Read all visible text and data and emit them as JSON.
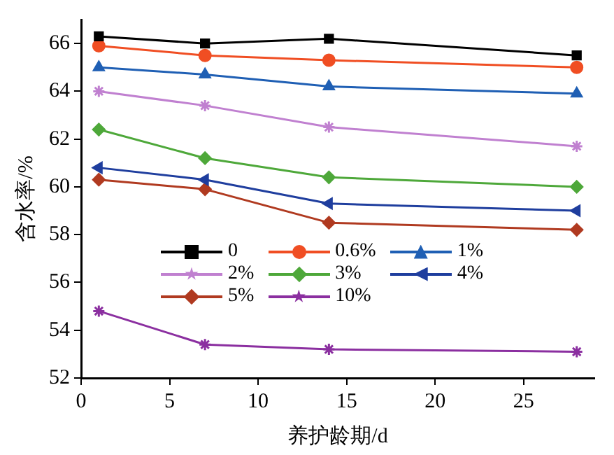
{
  "chart_data": {
    "type": "line",
    "xlabel": "养护龄期/d",
    "ylabel": "含水率/%",
    "x": [
      1,
      7,
      14,
      28
    ],
    "xlim": [
      0,
      29
    ],
    "xticks": [
      0,
      5,
      10,
      15,
      20,
      25
    ],
    "ylim": [
      52,
      67
    ],
    "yticks": [
      52,
      54,
      56,
      58,
      60,
      62,
      64,
      66
    ],
    "grid": false,
    "legend": "center",
    "line_style": "solid",
    "series": [
      {
        "name": "0",
        "color": "#000000",
        "marker": "square",
        "values": [
          66.3,
          66.0,
          66.2,
          65.5
        ]
      },
      {
        "name": "0.6%",
        "color": "#f04e23",
        "marker": "circle",
        "values": [
          65.9,
          65.5,
          65.3,
          65.0
        ]
      },
      {
        "name": "1%",
        "color": "#1f5fb4",
        "marker": "triangle",
        "values": [
          65.0,
          64.7,
          64.2,
          63.9
        ]
      },
      {
        "name": "2%",
        "color": "#c080d0",
        "marker": "cross",
        "values": [
          64.0,
          63.4,
          62.5,
          61.7
        ]
      },
      {
        "name": "3%",
        "color": "#4ea83a",
        "marker": "diamond",
        "values": [
          62.4,
          61.2,
          60.4,
          60.0
        ]
      },
      {
        "name": "4%",
        "color": "#1f3e9e",
        "marker": "triangle-left",
        "values": [
          60.8,
          60.3,
          59.3,
          59.0
        ]
      },
      {
        "name": "5%",
        "color": "#b03a20",
        "marker": "diamond",
        "values": [
          60.3,
          59.9,
          58.5,
          58.2
        ]
      },
      {
        "name": "10%",
        "color": "#8b2fa0",
        "marker": "cross",
        "values": [
          54.8,
          53.4,
          53.2,
          53.1
        ]
      }
    ]
  }
}
